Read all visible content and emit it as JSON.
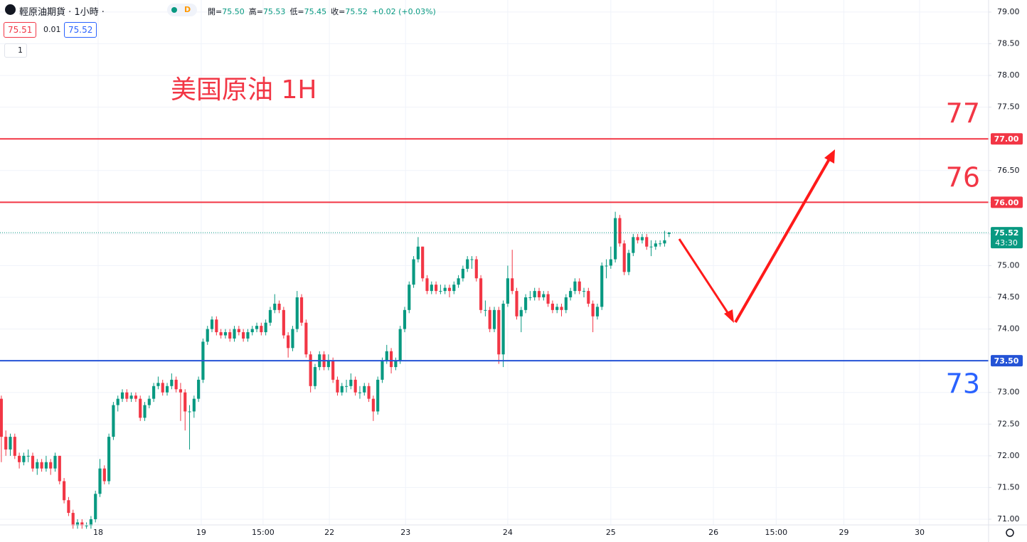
{
  "header": {
    "symbol": "輕原油期貨 · 1小時 ·",
    "badge": "D",
    "ohlc": [
      [
        "開=",
        "75.50"
      ],
      [
        "高=",
        "75.53"
      ],
      [
        "低=",
        "75.45"
      ],
      [
        "收=",
        "75.52"
      ]
    ],
    "change": "+0.02 (+0.03%)",
    "bid": "75.51",
    "spread": "0.01",
    "ask": "75.52",
    "interval": "1"
  },
  "chart_data": {
    "type": "candlestick",
    "title": "美国原油 1H",
    "up_color": "#089981",
    "down_color": "#f23645",
    "grid": true,
    "ylim": [
      70.91,
      79.19
    ],
    "yticks": [
      {
        "value": 71,
        "label": "71.00"
      },
      {
        "value": 71.5,
        "label": "71.50"
      },
      {
        "value": 72,
        "label": "72.00"
      },
      {
        "value": 72.5,
        "label": "72.50"
      },
      {
        "value": 73,
        "label": "73.00"
      },
      {
        "value": 73.5,
        "label": "73.50"
      },
      {
        "value": 74,
        "label": "74.00"
      },
      {
        "value": 74.5,
        "label": "74.50"
      },
      {
        "value": 75,
        "label": "75.00"
      },
      {
        "value": 75.5,
        "label": "75.50"
      },
      {
        "value": 76,
        "label": "76.00"
      },
      {
        "value": 76.5,
        "label": "76.50"
      },
      {
        "value": 77,
        "label": "77.00"
      },
      {
        "value": 77.5,
        "label": "77.50"
      },
      {
        "value": 78,
        "label": "78.00"
      },
      {
        "value": 78.5,
        "label": "78.50"
      },
      {
        "value": 79,
        "label": "79.00"
      }
    ],
    "xlim": [
      0,
      220.6
    ],
    "xticks": [
      {
        "value": 21.9,
        "label": "18"
      },
      {
        "value": 44.9,
        "label": "19"
      },
      {
        "value": 58.7,
        "label": "15:00"
      },
      {
        "value": 73.5,
        "label": "22"
      },
      {
        "value": 90.5,
        "label": "23"
      },
      {
        "value": 113.3,
        "label": "24"
      },
      {
        "value": 136.3,
        "label": "25"
      },
      {
        "value": 159.2,
        "label": "26"
      },
      {
        "value": 173.2,
        "label": "15:00"
      },
      {
        "value": 188.3,
        "label": "29"
      },
      {
        "value": 205.2,
        "label": "30"
      }
    ],
    "levels": [
      {
        "value": 77,
        "label": "77.00",
        "color": "#f23645"
      },
      {
        "value": 76,
        "label": "76.00",
        "color": "#f23645"
      },
      {
        "value": 73.5,
        "label": "73.50",
        "color": "#2453d6"
      }
    ],
    "annotations": [
      {
        "text": "77",
        "color": "#f23645"
      },
      {
        "text": "76",
        "color": "#f23645"
      },
      {
        "text": "73",
        "color": "#2962ff"
      }
    ],
    "last_price": {
      "value": 75.52,
      "label": "75.52",
      "countdown": "43:30",
      "color": "#089981"
    },
    "candles": [
      [
        72.9,
        72.95,
        71.9,
        72.3
      ],
      [
        72.3,
        72.4,
        72.0,
        72.1
      ],
      [
        72.1,
        72.35,
        72.0,
        72.3
      ],
      [
        72.3,
        72.35,
        71.95,
        72.0
      ],
      [
        72.0,
        72.05,
        71.8,
        71.9
      ],
      [
        71.9,
        72.05,
        71.85,
        72.0
      ],
      [
        72.0,
        72.1,
        71.9,
        72.0
      ],
      [
        72.0,
        72.05,
        71.75,
        71.8
      ],
      [
        71.8,
        71.95,
        71.7,
        71.9
      ],
      [
        71.9,
        71.95,
        71.75,
        71.8
      ],
      [
        71.8,
        72.0,
        71.75,
        71.9
      ],
      [
        71.9,
        71.95,
        71.7,
        71.8
      ],
      [
        71.8,
        72.05,
        71.75,
        72.0
      ],
      [
        72.0,
        72.0,
        71.55,
        71.6
      ],
      [
        71.6,
        71.65,
        71.25,
        71.3
      ],
      [
        71.3,
        71.35,
        71.05,
        71.1
      ],
      [
        71.1,
        71.15,
        70.85,
        70.9
      ],
      [
        70.9,
        71.0,
        70.85,
        70.95
      ],
      [
        70.95,
        71.0,
        70.85,
        70.9
      ],
      [
        70.9,
        70.95,
        70.85,
        70.9
      ],
      [
        70.9,
        71.05,
        70.85,
        71.0
      ],
      [
        71.0,
        71.45,
        70.95,
        71.4
      ],
      [
        71.4,
        71.95,
        71.35,
        71.8
      ],
      [
        71.8,
        71.85,
        71.55,
        71.6
      ],
      [
        71.6,
        72.35,
        71.55,
        72.3
      ],
      [
        72.3,
        72.85,
        72.25,
        72.8
      ],
      [
        72.8,
        72.95,
        72.7,
        72.9
      ],
      [
        72.9,
        73.05,
        72.85,
        73.0
      ],
      [
        73.0,
        73.05,
        72.85,
        72.9
      ],
      [
        72.9,
        73.0,
        72.85,
        72.95
      ],
      [
        72.95,
        73.0,
        72.85,
        72.9
      ],
      [
        72.9,
        72.95,
        72.55,
        72.6
      ],
      [
        72.6,
        72.85,
        72.55,
        72.8
      ],
      [
        72.8,
        72.95,
        72.75,
        72.9
      ],
      [
        72.9,
        73.15,
        72.85,
        73.1
      ],
      [
        73.1,
        73.25,
        73.05,
        73.15
      ],
      [
        73.15,
        73.2,
        72.95,
        73.0
      ],
      [
        73.0,
        73.15,
        72.95,
        73.1
      ],
      [
        73.1,
        73.3,
        73.05,
        73.2
      ],
      [
        73.2,
        73.25,
        73.0,
        73.05
      ],
      [
        73.05,
        73.15,
        72.55,
        73.0
      ],
      [
        73.0,
        73.05,
        72.4,
        72.7
      ],
      [
        72.7,
        72.8,
        72.1,
        72.7
      ],
      [
        72.7,
        72.95,
        72.6,
        72.9
      ],
      [
        72.9,
        73.25,
        72.85,
        73.2
      ],
      [
        73.2,
        73.85,
        73.15,
        73.8
      ],
      [
        73.8,
        74.05,
        73.75,
        74.0
      ],
      [
        74.0,
        74.2,
        73.95,
        74.15
      ],
      [
        74.15,
        74.2,
        73.9,
        73.95
      ],
      [
        73.95,
        74.0,
        73.85,
        73.9
      ],
      [
        73.9,
        74.0,
        73.85,
        73.95
      ],
      [
        73.95,
        74.0,
        73.8,
        73.85
      ],
      [
        73.85,
        74.05,
        73.8,
        74.0
      ],
      [
        74.0,
        74.05,
        73.9,
        73.95
      ],
      [
        73.95,
        74.0,
        73.8,
        73.85
      ],
      [
        73.85,
        74.0,
        73.8,
        73.95
      ],
      [
        73.95,
        74.05,
        73.9,
        74.0
      ],
      [
        74.0,
        74.1,
        73.95,
        74.05
      ],
      [
        74.05,
        74.1,
        73.9,
        73.95
      ],
      [
        73.95,
        74.15,
        73.9,
        74.1
      ],
      [
        74.1,
        74.35,
        74.05,
        74.3
      ],
      [
        74.3,
        74.55,
        74.25,
        74.4
      ],
      [
        74.4,
        74.45,
        74.25,
        74.3
      ],
      [
        74.3,
        74.35,
        73.85,
        73.9
      ],
      [
        73.9,
        73.95,
        73.55,
        73.7
      ],
      [
        73.7,
        74.05,
        73.65,
        74.0
      ],
      [
        74.0,
        74.6,
        73.95,
        74.5
      ],
      [
        74.5,
        74.55,
        74.05,
        74.1
      ],
      [
        74.1,
        74.15,
        73.55,
        73.6
      ],
      [
        73.6,
        73.65,
        73.0,
        73.1
      ],
      [
        73.1,
        73.45,
        73.05,
        73.4
      ],
      [
        73.4,
        73.65,
        73.35,
        73.6
      ],
      [
        73.6,
        73.65,
        73.35,
        73.4
      ],
      [
        73.4,
        73.6,
        73.35,
        73.5
      ],
      [
        73.5,
        73.55,
        73.15,
        73.2
      ],
      [
        73.2,
        73.25,
        72.95,
        73.0
      ],
      [
        73.0,
        73.15,
        72.95,
        73.1
      ],
      [
        73.1,
        73.2,
        73.0,
        73.1
      ],
      [
        73.1,
        73.3,
        73.05,
        73.2
      ],
      [
        73.2,
        73.25,
        72.95,
        73.0
      ],
      [
        73.0,
        73.1,
        72.9,
        73.0
      ],
      [
        73.0,
        73.15,
        72.95,
        73.1
      ],
      [
        73.1,
        73.15,
        72.85,
        72.9
      ],
      [
        72.9,
        72.95,
        72.55,
        72.7
      ],
      [
        72.7,
        73.25,
        72.65,
        73.2
      ],
      [
        73.2,
        73.55,
        73.15,
        73.5
      ],
      [
        73.5,
        73.75,
        73.45,
        73.65
      ],
      [
        73.65,
        73.7,
        73.3,
        73.4
      ],
      [
        73.4,
        73.55,
        73.35,
        73.5
      ],
      [
        73.5,
        74.05,
        73.45,
        74.0
      ],
      [
        74.0,
        74.35,
        73.95,
        74.3
      ],
      [
        74.3,
        74.75,
        74.25,
        74.7
      ],
      [
        74.7,
        75.15,
        74.65,
        75.1
      ],
      [
        75.1,
        75.45,
        75.05,
        75.3
      ],
      [
        75.3,
        75.3,
        74.75,
        74.8
      ],
      [
        74.8,
        74.85,
        74.55,
        74.6
      ],
      [
        74.6,
        74.75,
        74.55,
        74.7
      ],
      [
        74.7,
        74.75,
        74.55,
        74.6
      ],
      [
        74.6,
        74.7,
        74.55,
        74.6
      ],
      [
        74.6,
        74.7,
        74.55,
        74.65
      ],
      [
        74.65,
        74.7,
        74.5,
        74.6
      ],
      [
        74.6,
        74.75,
        74.55,
        74.7
      ],
      [
        74.7,
        74.85,
        74.65,
        74.8
      ],
      [
        74.8,
        75.0,
        74.75,
        74.95
      ],
      [
        74.95,
        75.15,
        74.9,
        75.1
      ],
      [
        75.1,
        75.15,
        74.95,
        75.1
      ],
      [
        75.1,
        75.15,
        74.75,
        74.8
      ],
      [
        74.8,
        74.85,
        74.25,
        74.3
      ],
      [
        74.3,
        74.45,
        74.2,
        74.3
      ],
      [
        74.3,
        74.35,
        73.95,
        74.0
      ],
      [
        74.0,
        74.35,
        73.95,
        74.3
      ],
      [
        74.3,
        74.35,
        73.45,
        73.6
      ],
      [
        73.6,
        74.45,
        73.4,
        74.4
      ],
      [
        74.4,
        75.0,
        74.35,
        74.8
      ],
      [
        74.8,
        75.25,
        74.55,
        74.6
      ],
      [
        74.6,
        74.65,
        74.15,
        74.2
      ],
      [
        74.2,
        74.35,
        73.95,
        74.3
      ],
      [
        74.3,
        74.55,
        74.25,
        74.5
      ],
      [
        74.5,
        74.6,
        74.45,
        74.5
      ],
      [
        74.5,
        74.65,
        74.45,
        74.6
      ],
      [
        74.6,
        74.65,
        74.45,
        74.5
      ],
      [
        74.5,
        74.6,
        74.45,
        74.55
      ],
      [
        74.55,
        74.6,
        74.35,
        74.4
      ],
      [
        74.4,
        74.45,
        74.25,
        74.3
      ],
      [
        74.3,
        74.4,
        74.25,
        74.35
      ],
      [
        74.35,
        74.4,
        74.2,
        74.3
      ],
      [
        74.3,
        74.55,
        74.25,
        74.5
      ],
      [
        74.5,
        74.65,
        74.45,
        74.6
      ],
      [
        74.6,
        74.8,
        74.55,
        74.75
      ],
      [
        74.75,
        74.8,
        74.55,
        74.6
      ],
      [
        74.6,
        74.65,
        74.5,
        74.6
      ],
      [
        74.6,
        74.65,
        74.35,
        74.4
      ],
      [
        74.4,
        74.45,
        73.95,
        74.2
      ],
      [
        74.2,
        74.4,
        74.15,
        74.35
      ],
      [
        74.35,
        75.05,
        74.3,
        75.0
      ],
      [
        75.0,
        75.1,
        74.8,
        75.0
      ],
      [
        75.0,
        75.3,
        74.95,
        75.1
      ],
      [
        75.1,
        75.85,
        75.05,
        75.75
      ],
      [
        75.75,
        75.8,
        75.3,
        75.35
      ],
      [
        75.35,
        75.4,
        74.85,
        74.9
      ],
      [
        74.9,
        75.25,
        74.85,
        75.2
      ],
      [
        75.2,
        75.5,
        75.15,
        75.45
      ],
      [
        75.45,
        75.5,
        75.35,
        75.4
      ],
      [
        75.4,
        75.5,
        75.35,
        75.45
      ],
      [
        75.45,
        75.5,
        75.25,
        75.3
      ],
      [
        75.3,
        75.4,
        75.15,
        75.3
      ],
      [
        75.3,
        75.4,
        75.25,
        75.35
      ],
      [
        75.35,
        75.4,
        75.3,
        75.35
      ],
      [
        75.35,
        75.55,
        75.3,
        75.4
      ],
      [
        75.5,
        75.53,
        75.45,
        75.52
      ]
    ]
  }
}
